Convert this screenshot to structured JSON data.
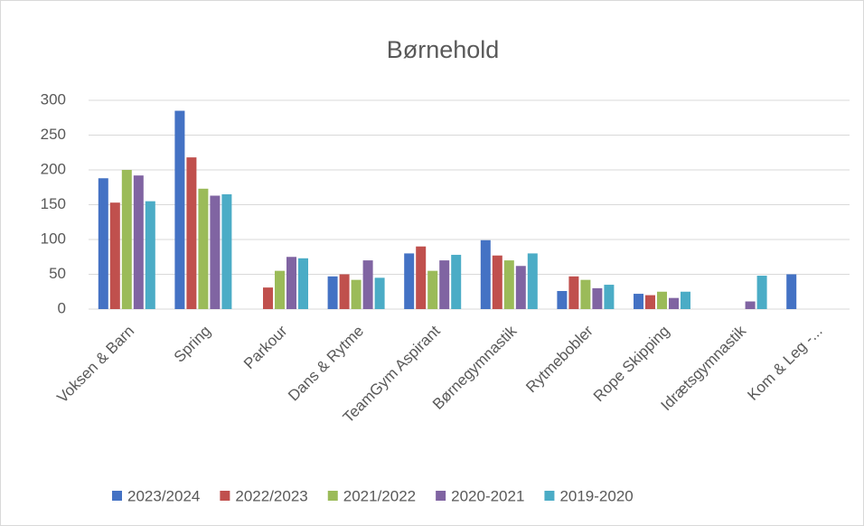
{
  "chart_data": {
    "type": "bar",
    "title": "Børnehold",
    "categories": [
      "Voksen & Barn",
      "Spring",
      "Parkour",
      "Dans & Rytme",
      "TeamGym Aspirant",
      "Børnegymnastik",
      "Rytmebobler",
      "Rope Skipping",
      "Idrætsgymnastik",
      "Kom & Leg -..."
    ],
    "series": [
      {
        "name": "2023/2024",
        "color": "#4472c4",
        "values": [
          188,
          285,
          null,
          47,
          80,
          99,
          26,
          22,
          null,
          50
        ]
      },
      {
        "name": "2022/2023",
        "color": "#c0504d",
        "values": [
          153,
          218,
          31,
          50,
          90,
          77,
          47,
          20,
          null,
          null
        ]
      },
      {
        "name": "2021/2022",
        "color": "#9bbb59",
        "values": [
          200,
          173,
          55,
          42,
          55,
          70,
          42,
          25,
          null,
          null
        ]
      },
      {
        "name": "2020-2021",
        "color": "#8064a2",
        "values": [
          192,
          163,
          75,
          70,
          70,
          62,
          30,
          16,
          11,
          null
        ]
      },
      {
        "name": "2019-2020",
        "color": "#4bacc6",
        "values": [
          155,
          165,
          73,
          45,
          78,
          80,
          35,
          25,
          48,
          null
        ]
      }
    ],
    "ylim": [
      0,
      300
    ],
    "yticks": [
      0,
      50,
      100,
      150,
      200,
      250,
      300
    ],
    "grid": true,
    "legend": "bottom"
  }
}
